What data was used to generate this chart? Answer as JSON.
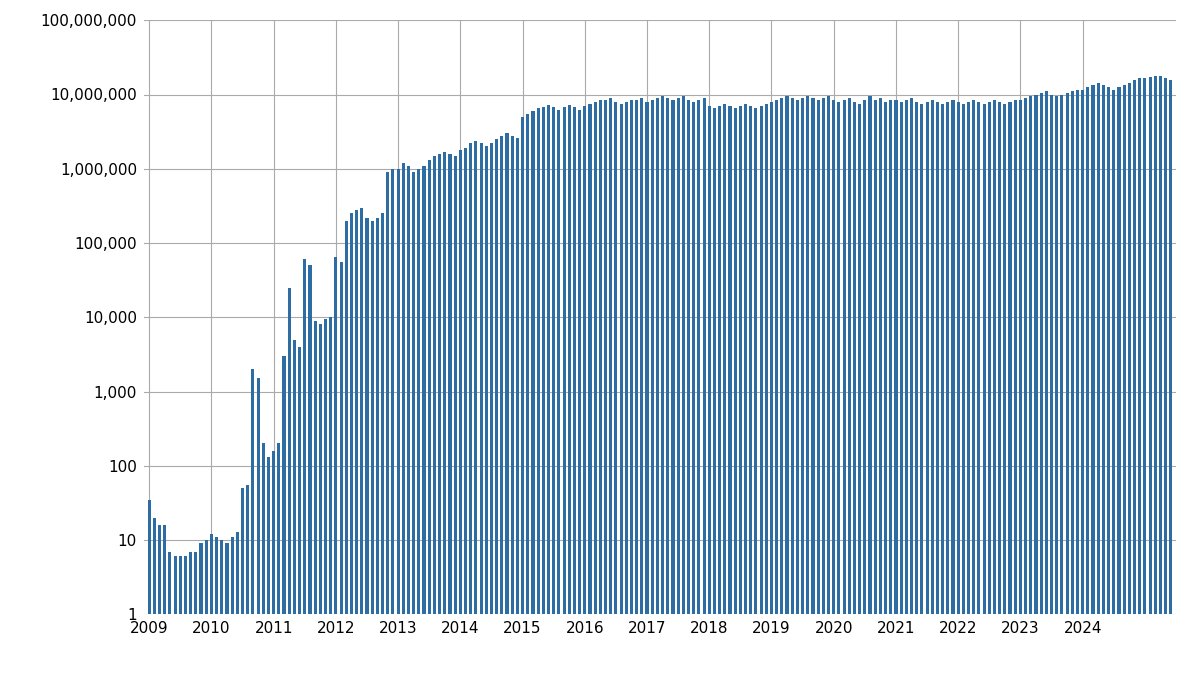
{
  "bar_color": "#2d6da3",
  "bar_edge_color": "#1a4f80",
  "background_color": "#ffffff",
  "grid_color": "#aaaaaa",
  "ylim_min": 1,
  "ylim_max": 100000000,
  "ylabel_ticks": [
    1,
    10,
    100,
    1000,
    10000,
    100000,
    1000000,
    10000000,
    100000000
  ],
  "ylabel_labels": [
    "1",
    "10",
    "100",
    "1,000",
    "10,000",
    "100,000",
    "1,000,000",
    "10,000,000",
    "100,000,000"
  ],
  "x_tick_years": [
    2009,
    2010,
    2011,
    2012,
    2013,
    2014,
    2015,
    2016,
    2017,
    2018,
    2019,
    2020,
    2021,
    2022,
    2023,
    2024
  ],
  "monthly_values": [
    35,
    20,
    16,
    16,
    7,
    6,
    6,
    6,
    7,
    7,
    9,
    10,
    12,
    11,
    10,
    9,
    11,
    13,
    50,
    55,
    2000,
    1500,
    200,
    130,
    160,
    200,
    3000,
    25000,
    5000,
    4000,
    60000,
    50000,
    9000,
    8000,
    9500,
    10000,
    65000,
    55000,
    200000,
    250000,
    280000,
    300000,
    220000,
    200000,
    220000,
    250000,
    900000,
    1000000,
    1000000,
    1200000,
    1100000,
    900000,
    1000000,
    1100000,
    1300000,
    1500000,
    1600000,
    1700000,
    1600000,
    1500000,
    1800000,
    1900000,
    2200000,
    2400000,
    2200000,
    2000000,
    2200000,
    2500000,
    2800000,
    3000000,
    2800000,
    2600000,
    5000000,
    5500000,
    6000000,
    6500000,
    6800000,
    7200000,
    6800000,
    6200000,
    6800000,
    7200000,
    6800000,
    6200000,
    7000000,
    7500000,
    8000000,
    8500000,
    8500000,
    9000000,
    8000000,
    7500000,
    8000000,
    8500000,
    8500000,
    9000000,
    8000000,
    8500000,
    9000000,
    9500000,
    9000000,
    8500000,
    9000000,
    9500000,
    8500000,
    8000000,
    8500000,
    9000000,
    7000000,
    6500000,
    7000000,
    7500000,
    7000000,
    6500000,
    7000000,
    7500000,
    7000000,
    6500000,
    7000000,
    7500000,
    8000000,
    8500000,
    9000000,
    9500000,
    9000000,
    8500000,
    9000000,
    9500000,
    9000000,
    8500000,
    9000000,
    9500000,
    8500000,
    8000000,
    8500000,
    9000000,
    8000000,
    7500000,
    8500000,
    9500000,
    8500000,
    9000000,
    8000000,
    8500000,
    8500000,
    8000000,
    8500000,
    9000000,
    8000000,
    7500000,
    8000000,
    8500000,
    8000000,
    7500000,
    8000000,
    8500000,
    8000000,
    7500000,
    8000000,
    8500000,
    8000000,
    7500000,
    8000000,
    8500000,
    8000000,
    7500000,
    8000000,
    8500000,
    8500000,
    9000000,
    9500000,
    10000000,
    10500000,
    11000000,
    10000000,
    9500000,
    10000000,
    10500000,
    11000000,
    11500000,
    11500000,
    12500000,
    13500000,
    14500000,
    13500000,
    12500000,
    11500000,
    12500000,
    13500000,
    14500000,
    15500000,
    16500000,
    16500000,
    17000000,
    17500000,
    18000000,
    16500000,
    15500000
  ]
}
